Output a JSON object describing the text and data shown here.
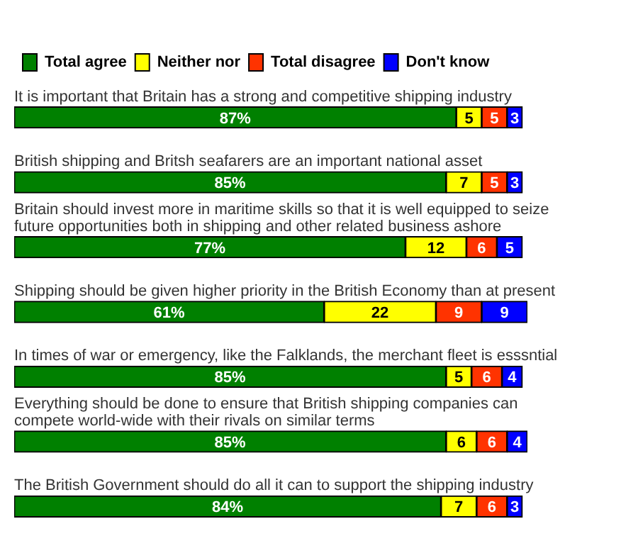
{
  "chart_data": {
    "type": "bar",
    "orientation": "horizontal",
    "stacked": true,
    "legend": "top left",
    "tick_labels": "y",
    "categories": [
      "It is important that Britain has a strong and competitive shipping industry",
      "British shipping and Britsh seafarers are an important national asset",
      "Britain should invest more in maritime skills so that it is well equipped to seize future opportunities both in shipping and other related business ashore",
      "Shipping should be given higher priority in the British Economy than at present",
      "In times of war or emergency, like the Falklands, the merchant fleet is esssntial",
      "Everything should be done to ensure that British shipping companies can compete world-wide with their rivals on similar terms",
      "The British Government should do all it can to support the shipping industry"
    ],
    "series": [
      {
        "name": "Total agree",
        "color": "#008000",
        "values": [
          87,
          85,
          77,
          61,
          85,
          85,
          84
        ],
        "value_labels": [
          "87%",
          "85%",
          "77%",
          "61%",
          "85%",
          "85%",
          "84%"
        ]
      },
      {
        "name": "Neither nor",
        "color": "#ffff00",
        "values": [
          5,
          7,
          12,
          22,
          5,
          6,
          7
        ],
        "value_labels": [
          "5",
          "7",
          "12",
          "22",
          "5",
          "6",
          "7"
        ]
      },
      {
        "name": "Total disagree",
        "color": "#ff3300",
        "values": [
          5,
          5,
          6,
          9,
          6,
          6,
          6
        ],
        "value_labels": [
          "5",
          "5",
          "6",
          "9",
          "6",
          "6",
          "6"
        ]
      },
      {
        "name": "Don't know",
        "color": "#0000ff",
        "values": [
          3,
          3,
          5,
          9,
          4,
          4,
          3
        ],
        "value_labels": [
          "3",
          "3",
          "5",
          "9",
          "4",
          "4",
          "3"
        ]
      }
    ]
  }
}
